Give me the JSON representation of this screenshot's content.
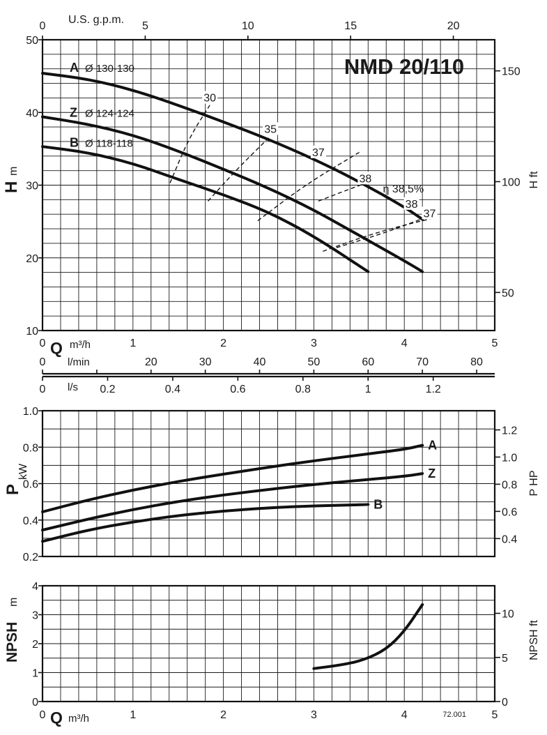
{
  "chart_data": [
    {
      "id": "head",
      "type": "line",
      "title": "NMD 20/110",
      "xlabel": "Q",
      "x_unit": "m³/h",
      "xlim": [
        0,
        5
      ],
      "x_ticks": [
        0,
        1,
        2,
        3,
        4,
        5
      ],
      "ylabel": "H",
      "y_unit": "m",
      "ylim": [
        10,
        50
      ],
      "y_ticks": [
        10,
        20,
        30,
        40,
        50
      ],
      "y2label": "H ft",
      "y2_ticks": [
        50,
        100,
        150
      ],
      "grid": true,
      "top_axis": {
        "label": "U.S. g.p.m.",
        "ticks": [
          0,
          5,
          10,
          15,
          20
        ],
        "per_m3h": 4.403
      },
      "extra_axes": [
        {
          "label": "l/min",
          "ticks": [
            0,
            10,
            20,
            30,
            40,
            50,
            60,
            70,
            80
          ],
          "labels": [
            "0",
            "",
            "20",
            "30",
            "40",
            "50",
            "60",
            "70",
            "80"
          ],
          "per_m3h": 16.667
        },
        {
          "label": "l/s",
          "ticks": [
            0,
            0.2,
            0.4,
            0.6,
            0.8,
            1,
            1.2
          ],
          "labels": [
            "0",
            "0.2",
            "0.4",
            "0.6",
            "0.8",
            "1",
            "1.2"
          ],
          "per_m3h": 0.2778
        }
      ],
      "series": [
        {
          "name": "A",
          "diameter": "Ø 130-130",
          "x": [
            0,
            0.5,
            1,
            1.5,
            2,
            2.5,
            3,
            3.5,
            4,
            4.2
          ],
          "y": [
            45.4,
            44.6,
            43.1,
            41,
            38.7,
            36.3,
            33.6,
            30.5,
            27,
            25.3
          ]
        },
        {
          "name": "Z",
          "diameter": "Ø 124-124",
          "x": [
            0,
            0.5,
            1,
            1.5,
            2,
            2.5,
            3,
            3.5,
            4,
            4.2
          ],
          "y": [
            39.4,
            38.4,
            36.9,
            34.7,
            32.2,
            29.6,
            26.6,
            23.1,
            19.6,
            18.1
          ]
        },
        {
          "name": "B",
          "diameter": "Ø 118-118",
          "x": [
            0,
            0.5,
            1,
            1.5,
            2,
            2.5,
            3,
            3.6
          ],
          "y": [
            35.3,
            34.5,
            33,
            30.8,
            28.7,
            26.3,
            23,
            18.1
          ]
        }
      ],
      "efficiency_label": "η",
      "efficiency": [
        {
          "label": "30",
          "x": [
            1.41,
            1.62,
            1.85
          ],
          "y": [
            30.3,
            36.5,
            41
          ]
        },
        {
          "label": "35",
          "x": [
            1.83,
            2.15,
            2.5
          ],
          "y": [
            27.8,
            32.2,
            36.5
          ]
        },
        {
          "label": "37",
          "x": [
            2.38,
            2.9,
            3.5
          ],
          "y": [
            25.1,
            30,
            34.5
          ]
        },
        {
          "label": "38",
          "x": [
            3.05,
            3.38,
            3.63
          ],
          "y": [
            27.8,
            29.4,
            30.5
          ]
        },
        {
          "label": "38,5%",
          "x": [
            3.64
          ],
          "y": [
            29
          ]
        },
        {
          "label": "38",
          "x": [
            3.25,
            3.8,
            4.2
          ],
          "y": [
            21.4,
            23.5,
            25.4
          ]
        },
        {
          "label": "37",
          "x": [
            3.1,
            3.5,
            3.9,
            4.3
          ],
          "y": [
            20.9,
            22.7,
            24.2,
            25.4
          ]
        }
      ]
    },
    {
      "id": "power",
      "type": "line",
      "xlabel": "",
      "xlim": [
        0,
        5
      ],
      "x_ticks": [
        0,
        1,
        2,
        3,
        4,
        5
      ],
      "ylabel": "P",
      "y_unit": "kW",
      "ylim": [
        0.2,
        1.0
      ],
      "y_ticks": [
        0.2,
        0.4,
        0.6,
        0.8,
        1.0
      ],
      "y_tick_labels": [
        "0.2",
        "0.4",
        "0.6",
        "0.8",
        "1.0"
      ],
      "y2label": "P HP",
      "y2_ticks": [
        0.4,
        0.6,
        0.8,
        1.0,
        1.2
      ],
      "y2_tick_labels": [
        "0.4",
        "0.6",
        "0.8",
        "1.0",
        "1.2"
      ],
      "grid": true,
      "series": [
        {
          "name": "A",
          "x": [
            0,
            0.5,
            1,
            1.5,
            2,
            2.5,
            3,
            3.5,
            4,
            4.2
          ],
          "y": [
            0.445,
            0.51,
            0.565,
            0.612,
            0.652,
            0.69,
            0.725,
            0.757,
            0.788,
            0.81
          ]
        },
        {
          "name": "Z",
          "x": [
            0,
            0.5,
            1,
            1.5,
            2,
            2.5,
            3,
            3.5,
            4,
            4.2
          ],
          "y": [
            0.345,
            0.405,
            0.458,
            0.502,
            0.538,
            0.568,
            0.595,
            0.618,
            0.64,
            0.655
          ]
        },
        {
          "name": "B",
          "x": [
            0,
            0.5,
            1,
            1.5,
            2,
            2.5,
            3,
            3.6
          ],
          "y": [
            0.283,
            0.345,
            0.39,
            0.425,
            0.45,
            0.467,
            0.478,
            0.485
          ]
        }
      ]
    },
    {
      "id": "npsh",
      "type": "line",
      "xlabel": "Q",
      "x_unit": "m³/h",
      "xlim": [
        0,
        5
      ],
      "x_ticks": [
        0,
        1,
        2,
        3,
        4,
        5
      ],
      "ylabel": "NPSH",
      "y_unit": "m",
      "ylim": [
        0,
        4
      ],
      "y_ticks": [
        0,
        1,
        2,
        3,
        4
      ],
      "y2label": "NPSH ft",
      "y2_ticks": [
        0,
        5,
        10
      ],
      "grid": true,
      "code": "72.001",
      "series": [
        {
          "name": "NPSH",
          "x": [
            3,
            3.3,
            3.55,
            3.8,
            4,
            4.2
          ],
          "y": [
            1.14,
            1.26,
            1.43,
            1.8,
            2.42,
            3.35
          ]
        }
      ]
    }
  ]
}
